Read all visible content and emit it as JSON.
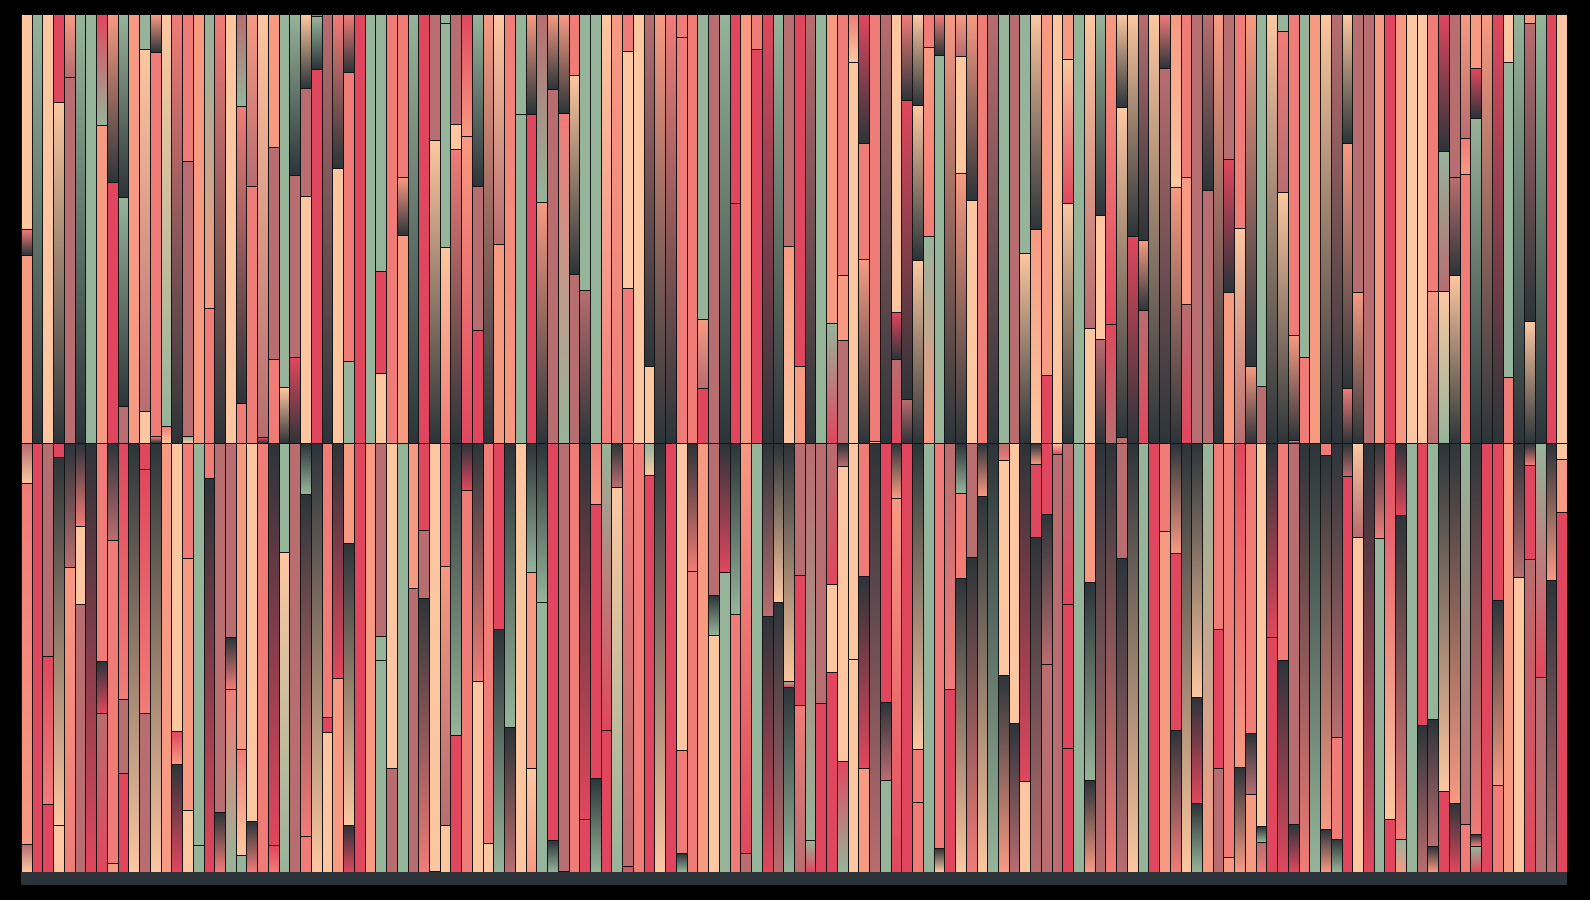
{
  "palette": {
    "background": "#000000",
    "shadow": "#2c3439",
    "crimson": "#e0475e",
    "rose": "#f07c78",
    "salmon": "#f79a82",
    "peach": "#fcc7a0",
    "sage": "#96b49a",
    "mauve": "#b86d70",
    "outline": "#141414"
  },
  "artwork": {
    "rows": 2,
    "stripes_per_row": 144
  }
}
